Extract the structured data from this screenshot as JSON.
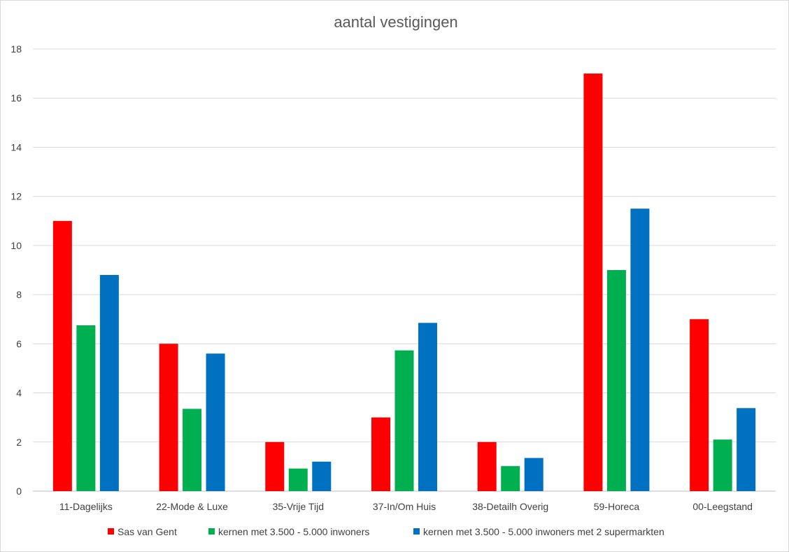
{
  "chart_data": {
    "type": "bar",
    "title": "aantal vestigingen",
    "xlabel": "",
    "ylabel": "",
    "ylim": [
      0,
      18
    ],
    "yticks": [
      0,
      2,
      4,
      6,
      8,
      10,
      12,
      14,
      16,
      18
    ],
    "grid": true,
    "legend_position": "bottom",
    "categories": [
      "11-Dagelijks",
      "22-Mode & Luxe",
      "35-Vrije Tijd",
      "37-In/Om Huis",
      "38-Detailh Overig",
      "59-Horeca",
      "00-Leegstand"
    ],
    "series": [
      {
        "name": "Sas van Gent",
        "color": "#ff0000",
        "values": [
          11,
          6,
          2,
          3,
          2,
          17,
          7
        ]
      },
      {
        "name": "kernen met 3.500 - 5.000 inwoners",
        "color": "#00b050",
        "values": [
          6.75,
          3.35,
          0.92,
          5.73,
          1.02,
          9.0,
          2.1
        ]
      },
      {
        "name": "kernen met 3.500 - 5.000 inwoners met 2 supermarkten",
        "color": "#0070c0",
        "values": [
          8.8,
          5.6,
          1.2,
          6.85,
          1.35,
          11.5,
          3.38
        ]
      }
    ]
  }
}
